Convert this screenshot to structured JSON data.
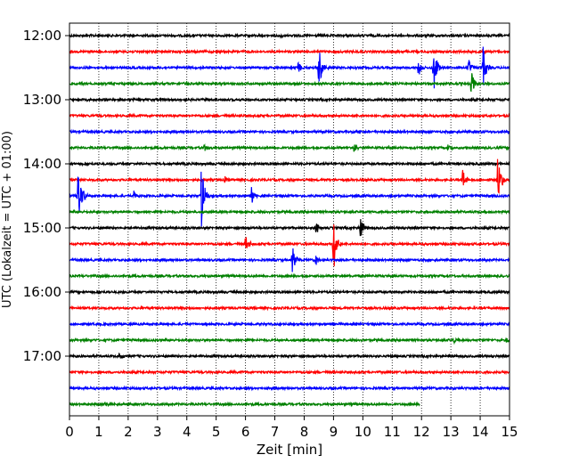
{
  "chart_data": {
    "type": "line",
    "chart_kind": "helicorder",
    "xlabel": "Zeit  [min]",
    "ylabel": "UTC (Lokalzeit = UTC + 01:00)",
    "xlim": [
      0,
      15
    ],
    "x_ticks": [
      "0",
      "1",
      "2",
      "3",
      "4",
      "5",
      "6",
      "7",
      "8",
      "9",
      "10",
      "11",
      "12",
      "13",
      "14",
      "15"
    ],
    "y_ticks": [
      "12:00",
      "13:00",
      "14:00",
      "15:00",
      "16:00",
      "17:00"
    ],
    "vertical_grid": "dotted",
    "trace_interval_min": 15,
    "trace_colors": [
      "#000000",
      "#ff0000",
      "#0000ff",
      "#008000"
    ],
    "traces": [
      {
        "start": "12:00",
        "end_min": 15,
        "events": [
          {
            "t": 7.2,
            "amp": 0.15
          }
        ]
      },
      {
        "start": "12:15",
        "end_min": 15,
        "events": []
      },
      {
        "start": "12:30",
        "end_min": 15,
        "events": [
          {
            "t": 7.8,
            "amp": 0.4
          },
          {
            "t": 8.5,
            "amp": 1.4
          },
          {
            "t": 11.9,
            "amp": 0.6
          },
          {
            "t": 12.4,
            "amp": 2.0
          },
          {
            "t": 13.6,
            "amp": 0.6
          },
          {
            "t": 14.1,
            "amp": 1.3
          }
        ]
      },
      {
        "start": "12:45",
        "end_min": 15,
        "events": [
          {
            "t": 13.7,
            "amp": 0.9
          },
          {
            "t": 4.0,
            "amp": 0.2
          }
        ]
      },
      {
        "start": "13:00",
        "end_min": 15,
        "events": []
      },
      {
        "start": "13:15",
        "end_min": 15,
        "events": []
      },
      {
        "start": "13:30",
        "end_min": 15,
        "events": [
          {
            "t": 9.8,
            "amp": 0.2
          }
        ]
      },
      {
        "start": "13:45",
        "end_min": 15,
        "events": [
          {
            "t": 4.6,
            "amp": 0.25
          },
          {
            "t": 9.7,
            "amp": 0.3
          },
          {
            "t": 12.9,
            "amp": 0.2
          }
        ]
      },
      {
        "start": "14:00",
        "end_min": 15,
        "events": []
      },
      {
        "start": "14:15",
        "end_min": 15,
        "events": [
          {
            "t": 13.4,
            "amp": 0.8
          },
          {
            "t": 14.6,
            "amp": 1.7
          },
          {
            "t": 5.3,
            "amp": 0.25
          }
        ]
      },
      {
        "start": "14:30",
        "end_min": 15,
        "events": [
          {
            "t": 0.3,
            "amp": 2.2
          },
          {
            "t": 4.5,
            "amp": 2.2
          },
          {
            "t": 6.2,
            "amp": 0.6
          },
          {
            "t": 2.2,
            "amp": 0.3
          }
        ]
      },
      {
        "start": "14:45",
        "end_min": 15,
        "events": []
      },
      {
        "start": "15:00",
        "end_min": 15,
        "events": [
          {
            "t": 8.4,
            "amp": 0.4
          },
          {
            "t": 9.9,
            "amp": 1.1
          }
        ]
      },
      {
        "start": "15:15",
        "end_min": 15,
        "events": [
          {
            "t": 6.0,
            "amp": 0.6
          },
          {
            "t": 9.0,
            "amp": 2.1
          }
        ]
      },
      {
        "start": "15:30",
        "end_min": 15,
        "events": [
          {
            "t": 7.6,
            "amp": 1.1
          },
          {
            "t": 8.4,
            "amp": 0.3
          }
        ]
      },
      {
        "start": "15:45",
        "end_min": 15,
        "events": []
      },
      {
        "start": "16:00",
        "end_min": 15,
        "events": []
      },
      {
        "start": "16:15",
        "end_min": 15,
        "events": []
      },
      {
        "start": "16:30",
        "end_min": 15,
        "events": []
      },
      {
        "start": "16:45",
        "end_min": 15,
        "events": [
          {
            "t": 13.1,
            "amp": 0.25
          },
          {
            "t": 14.9,
            "amp": 0.2
          }
        ]
      },
      {
        "start": "17:00",
        "end_min": 15,
        "events": [
          {
            "t": 1.7,
            "amp": 0.2
          }
        ]
      },
      {
        "start": "17:15",
        "end_min": 15,
        "events": []
      },
      {
        "start": "17:30",
        "end_min": 15,
        "events": []
      },
      {
        "start": "17:45",
        "end_min": 11.95,
        "events": [
          {
            "t": 1.2,
            "amp": 0.15
          }
        ]
      }
    ]
  }
}
